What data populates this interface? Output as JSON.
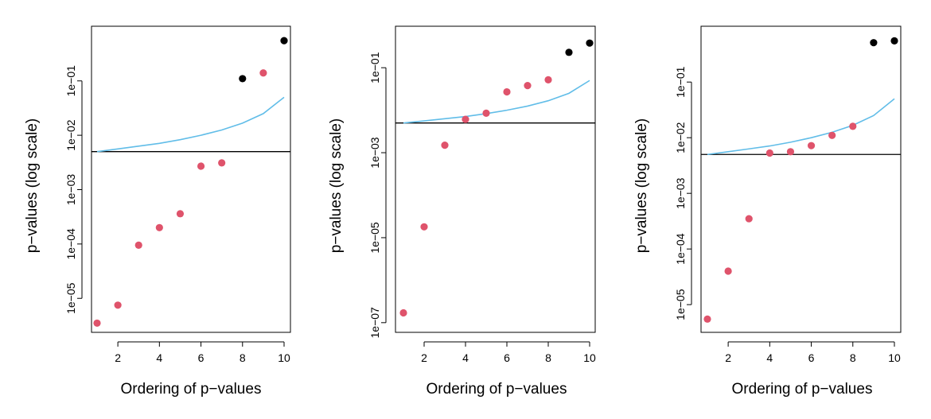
{
  "colors": {
    "rejected": "#DF536B",
    "not_rejected": "#000000",
    "threshold_curve": "#61BDE8",
    "bonferroni_line": "#000000"
  },
  "chart_data": [
    {
      "type": "scatter",
      "xlabel": "Ordering of p−values",
      "ylabel": "p−values (log scale)",
      "y_scale": "log",
      "xlim": [
        1,
        10
      ],
      "ylim": [
        3e-06,
        0.8
      ],
      "x_ticks": [
        2,
        4,
        6,
        8,
        10
      ],
      "x_tick_labels": [
        "2",
        "4",
        "6",
        "8",
        "10"
      ],
      "y_ticks": [
        1e-05,
        0.0001,
        0.001,
        0.01,
        0.1
      ],
      "y_tick_labels": [
        "1e−05",
        "1e−04",
        "1e−03",
        "1e−02",
        "1e−01"
      ],
      "x": [
        1,
        2,
        3,
        4,
        5,
        6,
        7,
        8,
        9,
        10
      ],
      "y": [
        3.5e-06,
        7.5e-06,
        9.5e-05,
        0.0002,
        0.00036,
        0.0027,
        0.0031,
        0.11,
        0.14,
        0.55
      ],
      "point_colors": [
        "#DF536B",
        "#DF536B",
        "#DF536B",
        "#DF536B",
        "#DF536B",
        "#DF536B",
        "#DF536B",
        "#000000",
        "#DF536B",
        "#000000"
      ],
      "threshold_curve": [
        0.005,
        0.0056,
        0.0063,
        0.0071,
        0.0083,
        0.01,
        0.0125,
        0.0167,
        0.025,
        0.05
      ],
      "horizontal_line": 0.005,
      "grid": false,
      "legend": "none"
    },
    {
      "type": "scatter",
      "xlabel": "Ordering of p−values",
      "ylabel": "p−values (log scale)",
      "y_scale": "log",
      "xlim": [
        1,
        10
      ],
      "ylim": [
        8e-08,
        0.7
      ],
      "x_ticks": [
        2,
        4,
        6,
        8,
        10
      ],
      "x_tick_labels": [
        "2",
        "4",
        "6",
        "8",
        "10"
      ],
      "y_ticks": [
        1e-07,
        1e-05,
        0.001,
        0.1
      ],
      "y_tick_labels": [
        "1e−07",
        "1e−05",
        "1e−03",
        "1e−01"
      ],
      "x": [
        1,
        2,
        3,
        4,
        5,
        6,
        7,
        8,
        9,
        10
      ],
      "y": [
        1.7e-07,
        1.8e-05,
        0.0015,
        0.0061,
        0.0085,
        0.027,
        0.038,
        0.052,
        0.23,
        0.38
      ],
      "point_colors": [
        "#DF536B",
        "#DF536B",
        "#DF536B",
        "#DF536B",
        "#DF536B",
        "#DF536B",
        "#DF536B",
        "#DF536B",
        "#000000",
        "#000000"
      ],
      "threshold_curve": [
        0.005,
        0.0056,
        0.0063,
        0.0071,
        0.0083,
        0.01,
        0.0125,
        0.0167,
        0.025,
        0.05
      ],
      "horizontal_line": 0.005,
      "grid": false,
      "legend": "none"
    },
    {
      "type": "scatter",
      "xlabel": "Ordering of p−values",
      "ylabel": "p−values (log scale)",
      "y_scale": "log",
      "xlim": [
        1,
        10
      ],
      "ylim": [
        4e-06,
        0.8
      ],
      "x_ticks": [
        2,
        4,
        6,
        8,
        10
      ],
      "x_tick_labels": [
        "2",
        "4",
        "6",
        "8",
        "10"
      ],
      "y_ticks": [
        1e-05,
        0.0001,
        0.001,
        0.01,
        0.1
      ],
      "y_tick_labels": [
        "1e−05",
        "1e−04",
        "1e−03",
        "1e−02",
        "1e−01"
      ],
      "x": [
        1,
        2,
        3,
        4,
        5,
        6,
        7,
        8,
        9,
        10
      ],
      "y": [
        5.5e-06,
        4e-05,
        0.00035,
        0.0053,
        0.0056,
        0.0072,
        0.011,
        0.016,
        0.51,
        0.55
      ],
      "point_colors": [
        "#DF536B",
        "#DF536B",
        "#DF536B",
        "#DF536B",
        "#DF536B",
        "#DF536B",
        "#DF536B",
        "#DF536B",
        "#000000",
        "#000000"
      ],
      "threshold_curve": [
        0.005,
        0.0056,
        0.0063,
        0.0071,
        0.0083,
        0.01,
        0.0125,
        0.0167,
        0.025,
        0.05
      ],
      "horizontal_line": 0.005,
      "grid": false,
      "legend": "none"
    }
  ]
}
